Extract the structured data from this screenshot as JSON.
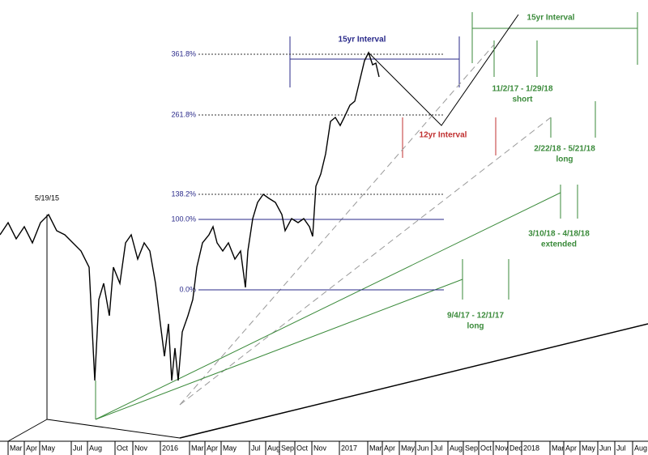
{
  "chart_data": {
    "type": "line",
    "color": "#000000",
    "x": [
      0,
      10,
      20,
      30,
      40,
      50,
      60,
      70,
      80,
      90,
      100,
      110,
      117,
      122,
      128,
      135,
      140,
      148,
      155,
      162,
      170,
      178,
      185,
      192,
      198,
      203,
      208,
      212,
      216,
      220,
      225,
      232,
      238,
      243,
      250,
      258,
      263,
      268,
      275,
      282,
      290,
      297,
      303,
      306,
      312,
      318,
      325,
      332,
      340,
      348,
      352,
      360,
      368,
      375,
      382,
      386,
      390,
      396,
      402,
      408,
      414,
      420,
      425,
      432,
      438,
      444,
      450,
      455,
      460,
      464,
      468
    ],
    "values": [
      272,
      287,
      267,
      282,
      262,
      287,
      297,
      277,
      272,
      262,
      252,
      232,
      92,
      192,
      212,
      172,
      232,
      212,
      262,
      272,
      242,
      262,
      252,
      212,
      162,
      122,
      162,
      92,
      132,
      92,
      152,
      172,
      192,
      232,
      262,
      272,
      282,
      262,
      252,
      262,
      242,
      252,
      207,
      252,
      292,
      312,
      322,
      317,
      312,
      297,
      277,
      292,
      287,
      292,
      282,
      270,
      332,
      347,
      372,
      412,
      417,
      407,
      417,
      432,
      437,
      462,
      487,
      497,
      482,
      484,
      467
    ],
    "xlim": [
      0,
      800
    ],
    "ylim": [
      0,
      562
    ],
    "xticks": [
      {
        "value": 10,
        "label": "Mar"
      },
      {
        "value": 30,
        "label": "Apr"
      },
      {
        "value": 49,
        "label": "May"
      },
      {
        "value": 88,
        "label": "Jul"
      },
      {
        "value": 108,
        "label": "Aug"
      },
      {
        "value": 142,
        "label": "Oct"
      },
      {
        "value": 164,
        "label": "Nov"
      },
      {
        "value": 198,
        "label": "2016"
      },
      {
        "value": 234,
        "label": "Mar"
      },
      {
        "value": 253,
        "label": "Apr"
      },
      {
        "value": 273,
        "label": "May"
      },
      {
        "value": 308,
        "label": "Jul"
      },
      {
        "value": 328,
        "label": "Aug"
      },
      {
        "value": 345,
        "label": "Sep"
      },
      {
        "value": 364,
        "label": "Oct"
      },
      {
        "value": 385,
        "label": "Nov"
      },
      {
        "value": 419,
        "label": "2017"
      },
      {
        "value": 454,
        "label": "Mar"
      },
      {
        "value": 472,
        "label": "Apr"
      },
      {
        "value": 493,
        "label": "May"
      },
      {
        "value": 513,
        "label": "Jun"
      },
      {
        "value": 533,
        "label": "Jul"
      },
      {
        "value": 553,
        "label": "Aug"
      },
      {
        "value": 572,
        "label": "Sep"
      },
      {
        "value": 591,
        "label": "Oct"
      },
      {
        "value": 609,
        "label": "Nov"
      },
      {
        "value": 627,
        "label": "Dec"
      },
      {
        "value": 644,
        "label": "2018"
      },
      {
        "value": 679,
        "label": "Mar"
      },
      {
        "value": 696,
        "label": "Apr"
      },
      {
        "value": 716,
        "label": "May"
      },
      {
        "value": 738,
        "label": "Jun"
      },
      {
        "value": 759,
        "label": "Jul"
      },
      {
        "value": 781,
        "label": "Aug"
      }
    ],
    "fib_levels": [
      {
        "value": 495,
        "label": "361.8%"
      },
      {
        "value": 420,
        "label": "261.8%"
      },
      {
        "value": 322,
        "label": "138.2%"
      },
      {
        "value": 291,
        "label": "100.0%"
      },
      {
        "value": 204,
        "label": "0.0%"
      }
    ],
    "annotations": {
      "peak_date": "5/19/15",
      "blue_interval": "15yr Interval",
      "green_interval": "15yr Interval",
      "red_interval": "12yr Interval",
      "window1_dates": "11/2/17 - 1/29/18",
      "window1_note": "short",
      "window2_dates": "2/22/18 - 5/21/18",
      "window2_note": "long",
      "window3_dates": "3/10/18 - 4/18/18",
      "window3_note": "extended",
      "window4_dates": "9/4/17 - 12/1/17",
      "window4_note": "long"
    }
  }
}
